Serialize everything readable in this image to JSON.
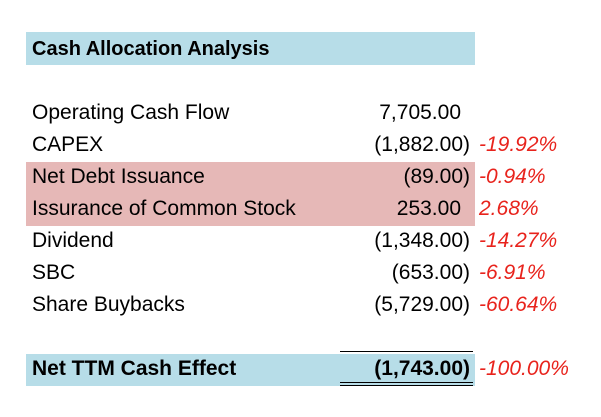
{
  "title": "Cash Allocation Analysis",
  "rows": [
    {
      "label": "Operating Cash Flow",
      "value": "7,705.00",
      "pct": ""
    },
    {
      "label": "CAPEX",
      "value": "(1,882.00)",
      "pct": "-19.92%"
    },
    {
      "label": "Net Debt Issuance",
      "value": "(89.00)",
      "pct": "-0.94%"
    },
    {
      "label": "Issurance of Common Stock",
      "value": "253.00",
      "pct": "2.68%"
    },
    {
      "label": "Dividend",
      "value": "(1,348.00)",
      "pct": "-14.27%"
    },
    {
      "label": "SBC",
      "value": "(653.00)",
      "pct": "-6.91%"
    },
    {
      "label": "Share Buybacks",
      "value": "(5,729.00)",
      "pct": "-60.64%"
    }
  ],
  "total": {
    "label": "Net TTM Cash Effect",
    "value": "(1,743.00)",
    "pct": "-100.00%"
  },
  "colors": {
    "header_fill": "#b7dde8",
    "highlight_fill": "#e6b8b7",
    "percent_text": "#e8231c"
  }
}
